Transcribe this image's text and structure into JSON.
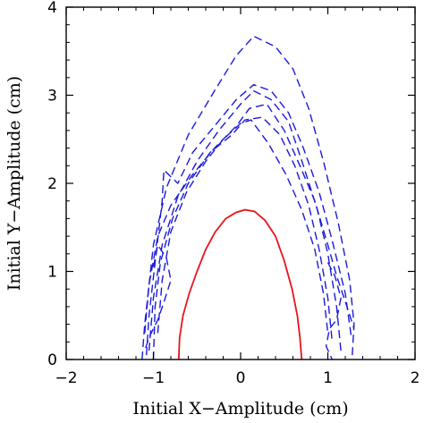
{
  "chart_data": {
    "type": "line",
    "title": "",
    "xlabel": "Initial X−Amplitude (cm)",
    "ylabel": "Initial Y−Amplitude (cm)",
    "xlim": [
      -2,
      2
    ],
    "ylim": [
      0,
      4
    ],
    "xticks": [
      -2,
      -1,
      0,
      1,
      2
    ],
    "xtick_labels": [
      "−2",
      "−1",
      "0",
      "1",
      "2"
    ],
    "yticks": [
      0,
      1,
      2,
      3,
      4
    ],
    "ytick_labels": [
      "0",
      "1",
      "2",
      "3",
      "4"
    ],
    "grid": false,
    "legend": "none",
    "series": [
      {
        "style": "solid",
        "color": "#e8141c",
        "points": [
          [
            -0.71,
            0.0
          ],
          [
            -0.7,
            0.25
          ],
          [
            -0.66,
            0.5
          ],
          [
            -0.59,
            0.75
          ],
          [
            -0.5,
            1.0
          ],
          [
            -0.4,
            1.25
          ],
          [
            -0.29,
            1.45
          ],
          [
            -0.17,
            1.6
          ],
          [
            -0.05,
            1.67
          ],
          [
            0.05,
            1.7
          ],
          [
            0.16,
            1.68
          ],
          [
            0.28,
            1.58
          ],
          [
            0.4,
            1.4
          ],
          [
            0.5,
            1.12
          ],
          [
            0.59,
            0.8
          ],
          [
            0.65,
            0.5
          ],
          [
            0.68,
            0.25
          ],
          [
            0.7,
            0.0
          ]
        ]
      },
      {
        "style": "dashed",
        "color": "#1a1adc",
        "points": [
          [
            -1.13,
            0.0
          ],
          [
            -1.1,
            0.4
          ],
          [
            -1.0,
            1.3
          ],
          [
            -0.85,
            1.95
          ],
          [
            -0.6,
            2.55
          ],
          [
            -0.3,
            3.05
          ],
          [
            -0.05,
            3.45
          ],
          [
            0.15,
            3.67
          ],
          [
            0.4,
            3.55
          ],
          [
            0.6,
            3.3
          ],
          [
            0.78,
            2.85
          ],
          [
            0.95,
            2.25
          ],
          [
            1.12,
            1.55
          ],
          [
            1.25,
            0.9
          ],
          [
            1.3,
            0.4
          ],
          [
            1.28,
            0.05
          ]
        ]
      },
      {
        "style": "dashed",
        "color": "#1a1adc",
        "points": [
          [
            -1.08,
            0.05
          ],
          [
            -1.05,
            0.5
          ],
          [
            -0.98,
            1.1
          ],
          [
            -0.9,
            1.8
          ],
          [
            -0.88,
            2.15
          ],
          [
            -0.72,
            2.0
          ],
          [
            -0.55,
            2.35
          ],
          [
            -0.3,
            2.65
          ],
          [
            -0.05,
            2.95
          ],
          [
            0.15,
            3.12
          ],
          [
            0.35,
            3.05
          ],
          [
            0.55,
            2.8
          ],
          [
            0.72,
            2.4
          ],
          [
            0.9,
            1.9
          ],
          [
            1.05,
            1.35
          ],
          [
            1.2,
            0.75
          ],
          [
            1.27,
            0.25
          ]
        ]
      },
      {
        "style": "dashed",
        "color": "#1a1adc",
        "points": [
          [
            -1.05,
            0.1
          ],
          [
            -1.0,
            0.7
          ],
          [
            -0.9,
            1.3
          ],
          [
            -0.72,
            1.85
          ],
          [
            -0.5,
            2.25
          ],
          [
            -0.25,
            2.6
          ],
          [
            0.0,
            2.9
          ],
          [
            0.15,
            3.05
          ],
          [
            0.35,
            2.95
          ],
          [
            0.55,
            2.7
          ],
          [
            0.72,
            2.2
          ],
          [
            0.88,
            1.7
          ],
          [
            1.0,
            1.2
          ],
          [
            1.1,
            0.6
          ],
          [
            1.15,
            0.1
          ]
        ]
      },
      {
        "style": "dashed",
        "color": "#1a1adc",
        "points": [
          [
            -1.0,
            0.0
          ],
          [
            -0.98,
            0.6
          ],
          [
            -0.92,
            1.1
          ],
          [
            -0.78,
            1.6
          ],
          [
            -0.6,
            2.0
          ],
          [
            -0.35,
            2.35
          ],
          [
            -0.1,
            2.55
          ],
          [
            0.05,
            2.72
          ],
          [
            0.25,
            2.75
          ],
          [
            0.45,
            2.55
          ],
          [
            0.62,
            2.2
          ],
          [
            0.78,
            1.75
          ],
          [
            0.9,
            1.25
          ],
          [
            1.0,
            0.7
          ],
          [
            1.05,
            0.2
          ]
        ]
      },
      {
        "style": "dashed",
        "color": "#1a1adc",
        "points": [
          [
            -0.95,
            0.3
          ],
          [
            -0.9,
            0.9
          ],
          [
            -0.8,
            1.45
          ],
          [
            -0.62,
            1.9
          ],
          [
            -0.4,
            2.25
          ],
          [
            -0.2,
            2.5
          ],
          [
            0.0,
            2.68
          ],
          [
            0.12,
            2.72
          ],
          [
            0.32,
            2.45
          ],
          [
            0.52,
            2.1
          ],
          [
            0.7,
            1.7
          ],
          [
            0.85,
            1.25
          ],
          [
            0.95,
            0.75
          ],
          [
            1.0,
            0.3
          ]
        ]
      },
      {
        "style": "dashed",
        "color": "#1a1adc",
        "points": [
          [
            -1.1,
            0.3
          ],
          [
            -1.05,
            0.85
          ],
          [
            -0.95,
            1.4
          ],
          [
            -0.8,
            1.75
          ],
          [
            -0.55,
            2.1
          ],
          [
            -0.3,
            2.4
          ],
          [
            -0.05,
            2.65
          ],
          [
            0.1,
            2.85
          ],
          [
            0.3,
            2.9
          ],
          [
            0.5,
            2.6
          ],
          [
            0.68,
            2.2
          ],
          [
            0.85,
            1.8
          ],
          [
            1.0,
            1.3
          ],
          [
            1.1,
            0.95
          ],
          [
            1.22,
            0.6
          ],
          [
            1.3,
            0.35
          ]
        ]
      },
      {
        "style": "dashed",
        "color": "#1a1adc",
        "points": [
          [
            -1.0,
            1.05
          ],
          [
            -0.95,
            1.3
          ],
          [
            -0.85,
            1.15
          ],
          [
            -0.8,
            0.9
          ],
          [
            -0.88,
            0.65
          ],
          [
            -0.95,
            0.45
          ],
          [
            -1.05,
            0.25
          ],
          [
            -1.1,
            0.1
          ]
        ]
      },
      {
        "style": "dashed",
        "color": "#1a1adc",
        "points": [
          [
            1.0,
            1.1
          ],
          [
            1.08,
            0.95
          ],
          [
            1.15,
            0.7
          ],
          [
            1.1,
            0.45
          ],
          [
            1.02,
            0.35
          ],
          [
            0.98,
            0.15
          ],
          [
            1.05,
            0.0
          ]
        ]
      }
    ]
  }
}
